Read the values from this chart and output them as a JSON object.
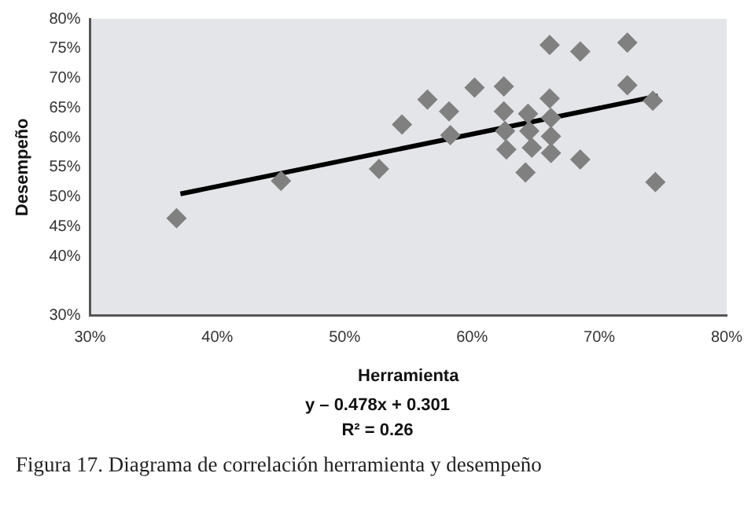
{
  "chart_data": {
    "type": "scatter",
    "xlabel": "Herramienta",
    "ylabel": "Desempeño",
    "xlim": [
      30,
      80
    ],
    "xticks": [
      {
        "value": 30,
        "label": "30%"
      },
      {
        "value": 40,
        "label": "40%"
      },
      {
        "value": 50,
        "label": "50%"
      },
      {
        "value": 60,
        "label": "60%"
      },
      {
        "value": 70,
        "label": "70%"
      },
      {
        "value": 80,
        "label": "80%"
      }
    ],
    "ylim": [
      30,
      80
    ],
    "yticks": [
      {
        "value": 30,
        "label": "30%"
      },
      {
        "value": 40,
        "label": "40%"
      },
      {
        "value": 45,
        "label": "45%"
      },
      {
        "value": 50,
        "label": "50%"
      },
      {
        "value": 55,
        "label": "55%"
      },
      {
        "value": 60,
        "label": "60%"
      },
      {
        "value": 65,
        "label": "65%"
      },
      {
        "value": 70,
        "label": "70%"
      },
      {
        "value": 75,
        "label": "75%"
      },
      {
        "value": 80,
        "label": "80%"
      }
    ],
    "grid": false,
    "legend": false,
    "series": [
      {
        "marker": "diamond",
        "color": "#808080",
        "x": [
          36.8,
          45.0,
          52.7,
          54.5,
          56.5,
          58.2,
          58.3,
          60.2,
          62.5,
          62.5,
          62.6,
          62.7,
          64.4,
          64.5,
          64.7,
          64.2,
          66.1,
          66.1,
          66.2,
          66.2,
          66.2,
          68.5,
          68.5,
          72.2,
          72.2,
          74.2,
          74.4
        ],
        "values": [
          46.4,
          52.7,
          54.7,
          62.2,
          66.4,
          64.4,
          60.4,
          68.4,
          68.6,
          64.4,
          61.1,
          58.0,
          64.0,
          61.1,
          58.3,
          54.1,
          75.6,
          66.6,
          63.3,
          60.2,
          57.4,
          74.5,
          56.3,
          76.0,
          68.8,
          66.2,
          52.5
        ]
      },
      {
        "type": "line",
        "marker": "none",
        "color": "#000000",
        "x": [
          37.1,
          74.6
        ],
        "values": [
          50.5,
          67.0
        ]
      }
    ],
    "annotations": [
      "y – 0.478x + 0.301",
      "R² = 0.26",
      "Figura 17. Diagrama de correlación herramienta y desempeño"
    ]
  }
}
